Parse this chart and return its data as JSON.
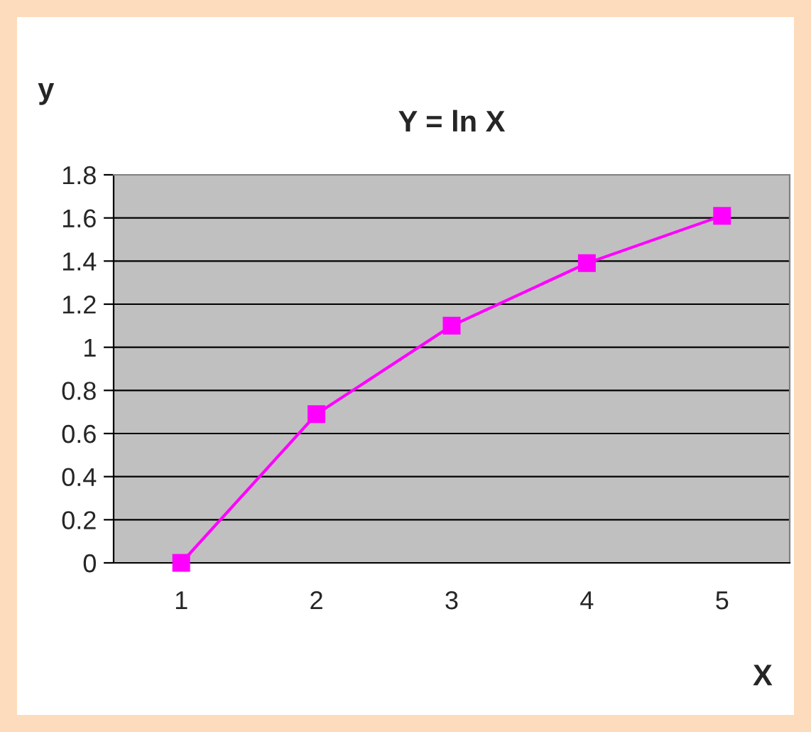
{
  "chart_data": {
    "type": "line",
    "title": "Y = ln X",
    "xlabel": "X",
    "ylabel": "y",
    "categories": [
      "1",
      "2",
      "3",
      "4",
      "5"
    ],
    "series": [
      {
        "color": "#ff00ff",
        "values": [
          0,
          0.69,
          1.1,
          1.39,
          1.61
        ]
      }
    ],
    "ylim": [
      0,
      1.8
    ],
    "yticks": [
      0,
      0.2,
      0.4,
      0.6,
      0.8,
      1,
      1.2,
      1.4,
      1.6,
      1.8
    ],
    "grid": "y",
    "marker": "square",
    "line_style": "solid"
  }
}
